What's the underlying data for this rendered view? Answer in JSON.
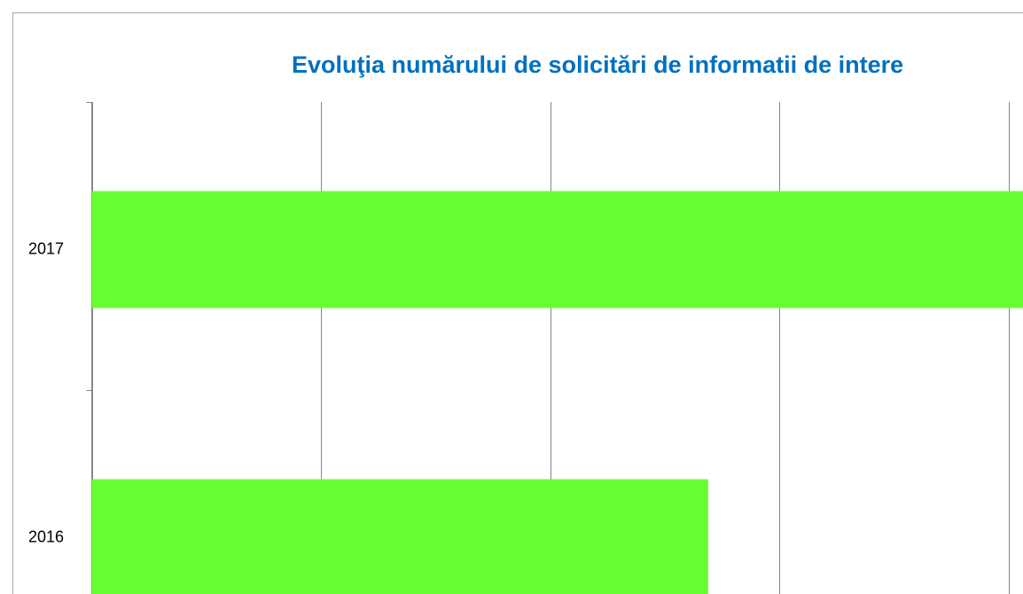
{
  "chart_data": {
    "type": "barh",
    "title": "Evoluţia numărului de solicitări de informatii de intere",
    "categories": [
      "2016",
      "2017"
    ],
    "values": [
      2.69,
      4.1
    ],
    "color": "#66ff33",
    "xlim": [
      0,
      4
    ],
    "xticks": [
      0,
      1,
      2,
      3,
      4
    ],
    "grid": true
  }
}
